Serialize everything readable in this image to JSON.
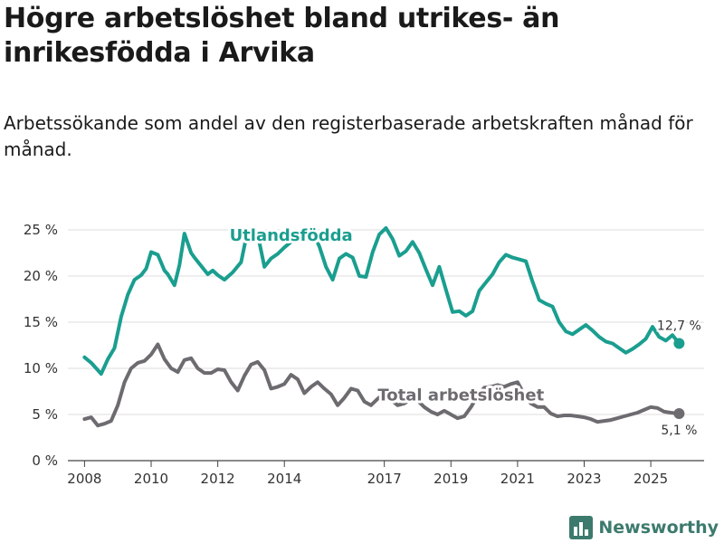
{
  "header": {
    "title": "Högre arbetslöshet bland utrikes- än inrikesfödda i Arvika",
    "subtitle": "Arbetssökande som andel av den registerbaserade arbetskraften månad för månad."
  },
  "brand": {
    "name": "Newsworthy",
    "icon": "bar-chart-icon",
    "color": "#3c7a6d"
  },
  "chart_data": {
    "type": "line",
    "title": "Högre arbetslöshet bland utrikes- än inrikesfödda i Arvika",
    "xlabel": "",
    "ylabel": "",
    "ylim": [
      0,
      25
    ],
    "xlim": [
      2007.5,
      2026.6
    ],
    "y_ticks": [
      0,
      5,
      10,
      15,
      20,
      25
    ],
    "y_tick_labels": [
      "0 %",
      "5 %",
      "10 %",
      "15 %",
      "20 %",
      "25 %"
    ],
    "x_ticks": [
      2008,
      2010,
      2012,
      2014,
      2017,
      2019,
      2021,
      2023,
      2025
    ],
    "x_tick_labels": [
      "2008",
      "2010",
      "2012",
      "2014",
      "2017",
      "2019",
      "2021",
      "2023",
      "2025"
    ],
    "grid": true,
    "series": [
      {
        "name": "Utlandsfödda",
        "color": "#1a9e8f",
        "end_label": "12,7 %",
        "x": [
          2008.0,
          2008.2,
          2008.5,
          2008.7,
          2008.9,
          2009.1,
          2009.3,
          2009.5,
          2009.7,
          2009.85,
          2010.0,
          2010.2,
          2010.4,
          2010.5,
          2010.7,
          2010.85,
          2011.0,
          2011.2,
          2011.3,
          2011.5,
          2011.7,
          2011.85,
          2012.0,
          2012.2,
          2012.45,
          2012.7,
          2012.9,
          2013.0,
          2013.2,
          2013.4,
          2013.6,
          2013.8,
          2014.0,
          2014.3,
          2014.6,
          2014.85,
          2015.05,
          2015.25,
          2015.45,
          2015.65,
          2015.85,
          2016.05,
          2016.25,
          2016.45,
          2016.65,
          2016.85,
          2017.05,
          2017.25,
          2017.45,
          2017.65,
          2017.85,
          2018.05,
          2018.25,
          2018.45,
          2018.65,
          2018.85,
          2019.05,
          2019.25,
          2019.45,
          2019.65,
          2019.85,
          2020.05,
          2020.25,
          2020.45,
          2020.65,
          2020.85,
          2021.05,
          2021.25,
          2021.45,
          2021.65,
          2021.85,
          2022.05,
          2022.25,
          2022.45,
          2022.65,
          2022.85,
          2023.05,
          2023.25,
          2023.45,
          2023.65,
          2023.85,
          2024.05,
          2024.25,
          2024.45,
          2024.65,
          2024.85,
          2025.05,
          2025.25,
          2025.45,
          2025.65,
          2025.85
        ],
        "values": [
          11.2,
          10.6,
          9.4,
          11.0,
          12.2,
          15.6,
          18.0,
          19.6,
          20.1,
          20.8,
          22.6,
          22.3,
          20.6,
          20.2,
          19.0,
          21.2,
          24.6,
          22.5,
          22.0,
          21.1,
          20.2,
          20.6,
          20.1,
          19.6,
          20.4,
          21.5,
          25.0,
          24.8,
          24.5,
          21.0,
          21.9,
          22.4,
          23.1,
          24.0,
          24.5,
          24.8,
          23.2,
          21.0,
          19.6,
          21.9,
          22.4,
          22.0,
          20.0,
          19.9,
          22.6,
          24.5,
          25.2,
          24.0,
          22.2,
          22.7,
          23.7,
          22.5,
          20.7,
          19.0,
          21.0,
          18.5,
          16.1,
          16.2,
          15.7,
          16.2,
          18.4,
          19.3,
          20.2,
          21.5,
          22.3,
          22.0,
          21.8,
          21.6,
          19.4,
          17.4,
          17.0,
          16.7,
          15.0,
          14.0,
          13.7,
          14.2,
          14.7,
          14.1,
          13.4,
          12.9,
          12.7,
          12.2,
          11.7,
          12.1,
          12.6,
          13.2,
          14.5,
          13.4,
          13.0,
          13.6,
          12.7
        ]
      },
      {
        "name": "Total arbetslöshet",
        "color": "#6e6b70",
        "end_label": "5,1 %",
        "x": [
          2008.0,
          2008.2,
          2008.4,
          2008.6,
          2008.8,
          2009.0,
          2009.2,
          2009.4,
          2009.6,
          2009.8,
          2010.0,
          2010.2,
          2010.4,
          2010.6,
          2010.8,
          2011.0,
          2011.2,
          2011.4,
          2011.6,
          2011.8,
          2012.0,
          2012.2,
          2012.4,
          2012.6,
          2012.8,
          2013.0,
          2013.2,
          2013.4,
          2013.6,
          2013.8,
          2014.0,
          2014.2,
          2014.4,
          2014.6,
          2014.8,
          2015.0,
          2015.2,
          2015.4,
          2015.6,
          2015.8,
          2016.0,
          2016.2,
          2016.4,
          2016.6,
          2016.8,
          2017.0,
          2017.2,
          2017.4,
          2017.6,
          2017.8,
          2018.0,
          2018.2,
          2018.4,
          2018.6,
          2018.8,
          2019.0,
          2019.2,
          2019.4,
          2019.6,
          2019.8,
          2020.0,
          2020.2,
          2020.4,
          2020.6,
          2020.8,
          2021.0,
          2021.2,
          2021.4,
          2021.6,
          2021.8,
          2022.0,
          2022.2,
          2022.4,
          2022.6,
          2022.8,
          2023.0,
          2023.2,
          2023.4,
          2023.6,
          2023.8,
          2024.0,
          2024.2,
          2024.4,
          2024.6,
          2024.8,
          2025.0,
          2025.2,
          2025.4,
          2025.6,
          2025.85
        ],
        "values": [
          4.5,
          4.7,
          3.8,
          4.0,
          4.3,
          6.0,
          8.5,
          10.0,
          10.6,
          10.8,
          11.5,
          12.6,
          11.0,
          10.0,
          9.6,
          10.9,
          11.1,
          10.0,
          9.5,
          9.5,
          9.9,
          9.8,
          8.5,
          7.6,
          9.2,
          10.4,
          10.7,
          9.8,
          7.8,
          8.0,
          8.3,
          9.3,
          8.8,
          7.3,
          8.0,
          8.5,
          7.8,
          7.2,
          6.0,
          6.8,
          7.8,
          7.6,
          6.4,
          6.0,
          6.7,
          7.3,
          6.6,
          6.0,
          6.2,
          6.7,
          6.5,
          5.8,
          5.3,
          5.0,
          5.4,
          5.0,
          4.6,
          4.8,
          5.8,
          7.0,
          7.9,
          8.0,
          8.2,
          8.0,
          8.3,
          8.5,
          7.2,
          6.2,
          5.8,
          5.8,
          5.1,
          4.8,
          4.9,
          4.9,
          4.8,
          4.7,
          4.5,
          4.2,
          4.3,
          4.4,
          4.6,
          4.8,
          5.0,
          5.2,
          5.5,
          5.8,
          5.7,
          5.3,
          5.2,
          5.1
        ]
      }
    ]
  }
}
